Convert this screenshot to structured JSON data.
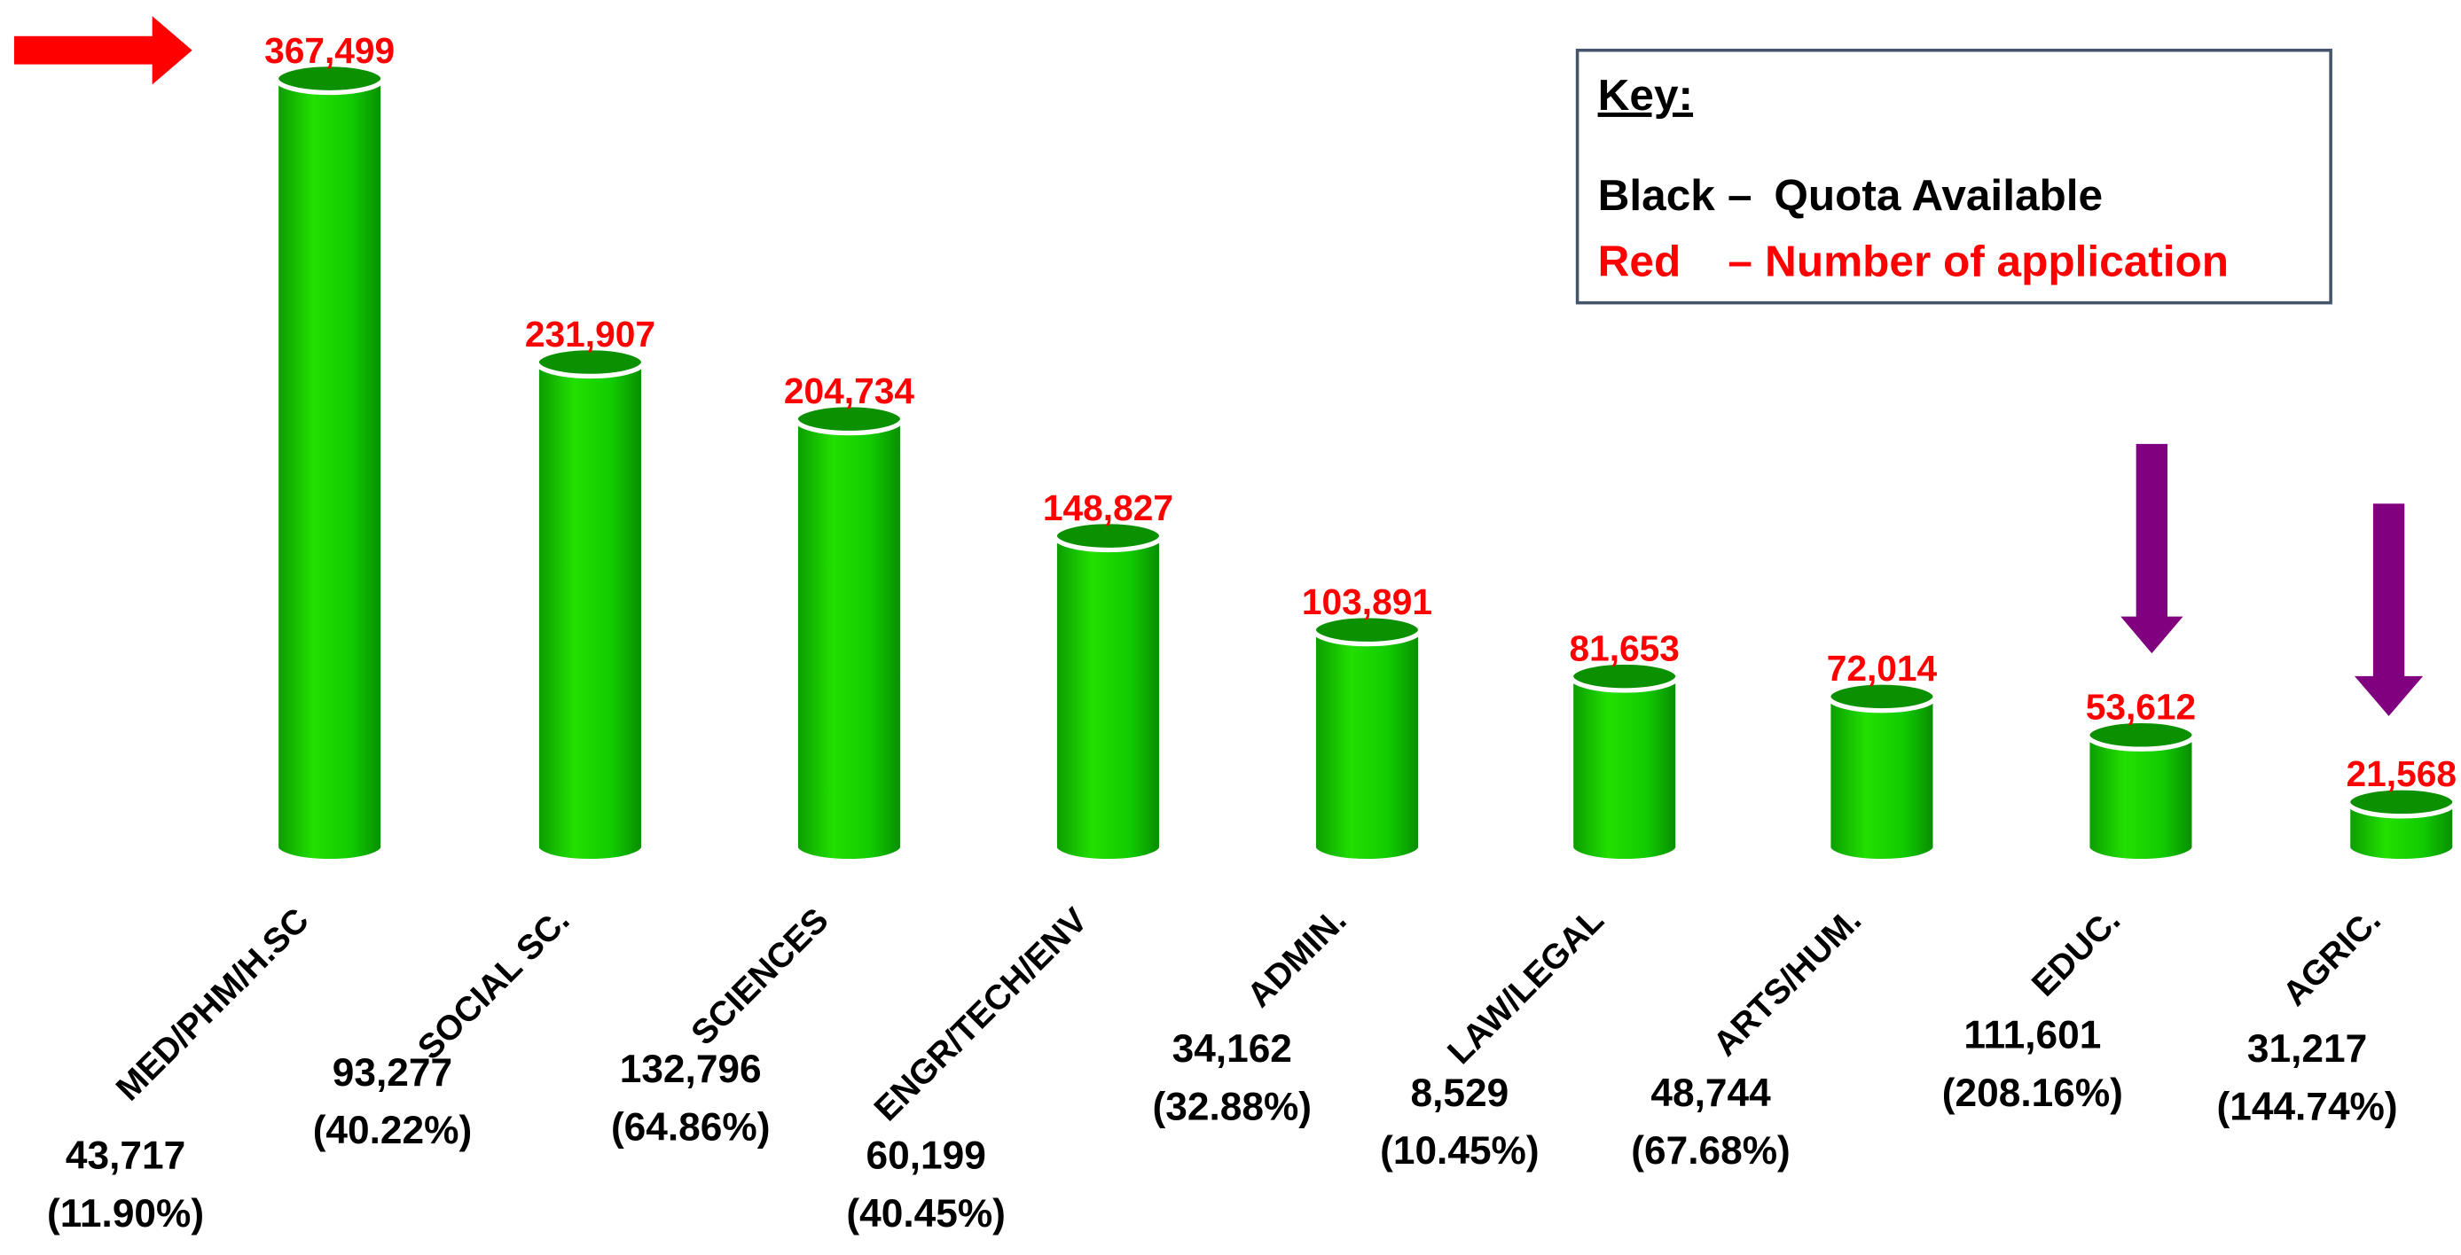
{
  "chart_data": {
    "type": "bar",
    "categories": [
      "MED/PHM/H.SC",
      "SOCIAL SC.",
      "SCIENCES",
      "ENGR/TECH/ENV",
      "ADMIN.",
      "LAW/LEGAL",
      "ARTS/HUM.",
      "EDUC.",
      "AGRIC."
    ],
    "color": "#11cc00",
    "series": [
      {
        "name": "Number of application",
        "key": "Red",
        "color": "#ff0000",
        "values": [
          367499,
          231907,
          204734,
          148827,
          103891,
          81653,
          72014,
          53612,
          21568
        ],
        "value_labels": [
          "367,499",
          "231,907",
          "204,734",
          "148,827",
          "103,891",
          "81,653",
          "72,014",
          "53,612",
          "21,568"
        ]
      },
      {
        "name": "Quota Available",
        "key": "Black",
        "color": "#000000",
        "values": [
          43717,
          93277,
          132796,
          60199,
          34162,
          8529,
          48744,
          111601,
          31217
        ],
        "value_labels": [
          "43,717",
          "93,277",
          "132,796",
          "60,199",
          "34,162",
          "8,529",
          "48,744",
          "111,601",
          "31,217"
        ]
      }
    ],
    "quota_percent": {
      "values": [
        11.9,
        40.22,
        64.86,
        40.45,
        32.88,
        10.45,
        67.68,
        208.16,
        144.74
      ],
      "value_labels": [
        "(11.90%)",
        "(40.22%)",
        "(64.86%)",
        "(40.45%)",
        "(32.88%)",
        "(10.45%)",
        "(67.68%)",
        "(208.16%)",
        "(144.74%)"
      ]
    },
    "legend": {
      "title": "Key:",
      "separator": "–"
    }
  }
}
